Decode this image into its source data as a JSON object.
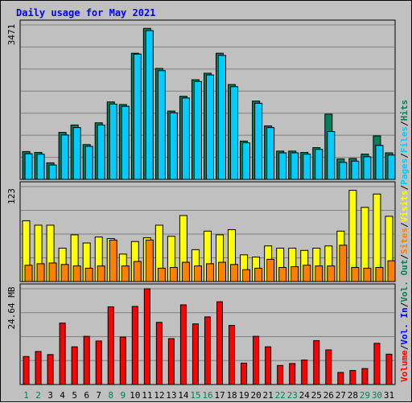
{
  "chart_data": {
    "type": "bar",
    "title": "Daily usage for May 2021",
    "categories": [
      "1",
      "2",
      "3",
      "4",
      "5",
      "6",
      "7",
      "8",
      "9",
      "10",
      "11",
      "12",
      "13",
      "14",
      "15",
      "16",
      "17",
      "18",
      "19",
      "20",
      "21",
      "22",
      "23",
      "24",
      "25",
      "26",
      "27",
      "28",
      "29",
      "30",
      "31"
    ],
    "weekend_days": [
      "1",
      "2",
      "8",
      "9",
      "15",
      "16",
      "22",
      "23",
      "29",
      "30"
    ],
    "colors": {
      "weekday_label": "#000000",
      "weekend_label": "#00805c",
      "hits": "#00805c",
      "files": "#00ccff",
      "pages": "#00ccff",
      "sites": "#ff8000",
      "visits": "#ffff00",
      "vol_out": "#00805c",
      "vol_in": "#0000ff",
      "volume": "#ff0000",
      "title": "#0000ff",
      "background": "#c0c0c0",
      "gridline": "#808080"
    },
    "panels": [
      {
        "id": "hits",
        "max_label": "3471",
        "ymax": 3550,
        "series": [
          {
            "name": "Hits",
            "values": [
              640,
              620,
              380,
              1080,
              1250,
              800,
              1300,
              1780,
              1720,
              2900,
              3471,
              2550,
              1570,
              1910,
              2290,
              2440,
              2900,
              2180,
              880,
              1800,
              1230,
              650,
              650,
              620,
              730,
              1500,
              470,
              480,
              580,
              1000,
              610
            ]
          },
          {
            "name": "Files",
            "values": [
              590,
              580,
              330,
              1020,
              1190,
              760,
              1250,
              1730,
              1680,
              2880,
              3420,
              2500,
              1530,
              1870,
              2250,
              2400,
              2850,
              2130,
              840,
              1750,
              1190,
              610,
              610,
              580,
              690,
              1100,
              390,
              420,
              520,
              780,
              560
            ]
          }
        ]
      },
      {
        "id": "visits",
        "max_label": "123",
        "ymax": 128,
        "series": [
          {
            "name": "Visits",
            "values": [
              82,
              76,
              76,
              45,
              63,
              52,
              60,
              58,
              37,
              54,
              59,
              76,
              61,
              89,
              43,
              68,
              63,
              70,
              36,
              33,
              48,
              45,
              45,
              42,
              45,
              48,
              68,
              123,
              100,
              118,
              88
            ]
          },
          {
            "name": "Sites",
            "values": [
              22,
              24,
              25,
              23,
              21,
              18,
              21,
              56,
              21,
              27,
              56,
              18,
              19,
              26,
              21,
              24,
              26,
              23,
              16,
              18,
              30,
              19,
              20,
              22,
              21,
              21,
              49,
              19,
              18,
              19,
              28
            ]
          }
        ]
      },
      {
        "id": "volume",
        "max_label": "24.64 MB",
        "ymax": 24.64,
        "series": [
          {
            "name": "Volume",
            "values": [
              7.2,
              8.5,
              7.7,
              15.8,
              9.7,
              12.4,
              11.2,
              20.0,
              12.2,
              20.1,
              24.64,
              16.0,
              11.8,
              20.5,
              15.6,
              17.4,
              21.3,
              15.2,
              5.5,
              12.4,
              9.7,
              4.9,
              5.4,
              6.3,
              11.3,
              8.9,
              3.1,
              3.6,
              4.1,
              10.6,
              7.8
            ]
          }
        ]
      }
    ],
    "legend": [
      {
        "label": "Hits",
        "color_key": "hits"
      },
      {
        "label": "Files",
        "color_key": "files"
      },
      {
        "label": "Pages",
        "color_key": "pages"
      },
      {
        "label": "Visits",
        "color_key": "visits"
      },
      {
        "label": "Sites",
        "color_key": "sites"
      },
      {
        "label": "Vol. Out",
        "color_key": "vol_out"
      },
      {
        "label": "Vol. In",
        "color_key": "vol_in"
      },
      {
        "label": "Volume",
        "color_key": "volume"
      }
    ],
    "legend_placement": "right, vertical"
  }
}
